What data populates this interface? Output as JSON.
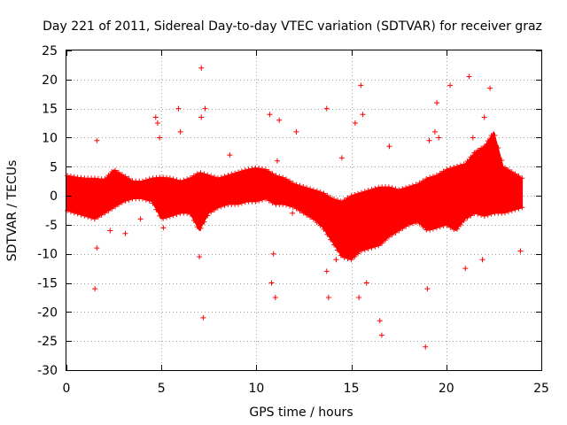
{
  "chart_data": {
    "type": "scatter",
    "title": "Day 221 of 2011, Sidereal Day-to-day VTEC variation (SDTVAR) for receiver graz",
    "xlabel": "GPS time / hours",
    "ylabel": "SDTVAR / TECUs",
    "xlim": [
      0,
      25
    ],
    "ylim": [
      -30,
      25
    ],
    "xticks": [
      0,
      5,
      10,
      15,
      20,
      25
    ],
    "yticks": [
      25,
      20,
      15,
      10,
      5,
      0,
      -5,
      -10,
      -15,
      -20,
      -25,
      -30
    ],
    "grid": true,
    "marker": "+",
    "colors": {
      "series": "#ff0000",
      "axes": "#000000",
      "grid": "#a0a0a0"
    },
    "band": {
      "name": "dense band",
      "x": [
        0.0,
        0.5,
        1.0,
        1.5,
        2.0,
        2.5,
        3.0,
        3.5,
        4.0,
        4.5,
        5.0,
        5.5,
        6.0,
        6.5,
        7.0,
        7.5,
        8.0,
        8.5,
        9.0,
        9.5,
        10.0,
        10.5,
        11.0,
        11.5,
        12.0,
        12.5,
        13.0,
        13.5,
        14.0,
        14.5,
        15.0,
        15.5,
        16.0,
        16.5,
        17.0,
        17.5,
        18.0,
        18.5,
        19.0,
        19.5,
        20.0,
        20.5,
        21.0,
        21.5,
        22.0,
        22.5,
        23.0,
        23.5,
        24.0
      ],
      "upper": [
        3.5,
        3.2,
        3.0,
        3.0,
        2.8,
        4.5,
        3.5,
        2.5,
        2.5,
        3.0,
        3.2,
        3.0,
        2.5,
        3.0,
        4.0,
        3.5,
        3.0,
        3.5,
        4.0,
        4.5,
        4.8,
        4.5,
        3.5,
        3.0,
        2.0,
        1.5,
        1.0,
        0.5,
        -0.5,
        -1.0,
        0.0,
        0.5,
        1.0,
        1.5,
        1.5,
        1.0,
        1.5,
        2.0,
        3.0,
        3.5,
        4.5,
        5.0,
        5.5,
        7.5,
        8.5,
        11.0,
        5.0,
        4.0,
        3.0
      ],
      "lower": [
        -2.5,
        -3.0,
        -3.5,
        -4.0,
        -3.0,
        -2.0,
        -1.0,
        -0.5,
        -0.5,
        -1.0,
        -4.0,
        -3.5,
        -3.0,
        -3.0,
        -6.0,
        -3.0,
        -2.0,
        -1.5,
        -1.5,
        -1.0,
        -1.0,
        -0.5,
        -1.5,
        -1.5,
        -2.0,
        -3.0,
        -4.0,
        -5.5,
        -8.0,
        -10.5,
        -11.0,
        -9.5,
        -9.0,
        -8.5,
        -7.0,
        -6.0,
        -5.0,
        -4.5,
        -6.0,
        -5.5,
        -5.0,
        -6.0,
        -4.0,
        -3.0,
        -3.5,
        -3.0,
        -3.0,
        -2.5,
        -2.0
      ]
    },
    "outliers": {
      "x": [
        1.6,
        1.5,
        1.6,
        2.3,
        3.1,
        3.9,
        4.7,
        4.8,
        4.9,
        5.1,
        5.9,
        6.0,
        7.1,
        7.1,
        7.2,
        7.3,
        7.0,
        8.6,
        10.7,
        11.0,
        11.2,
        10.8,
        10.9,
        11.1,
        12.1,
        11.9,
        13.7,
        13.8,
        13.7,
        14.5,
        15.2,
        15.5,
        15.6,
        15.4,
        15.3,
        16.5,
        16.6,
        17.0,
        18.9,
        19.0,
        19.1,
        19.5,
        19.6,
        19.4,
        20.2,
        20.3,
        21.0,
        21.2,
        21.4,
        22.0,
        21.9,
        22.3,
        22.1,
        23.9,
        15.8,
        14.2
      ],
      "y": [
        9.5,
        -16.0,
        -9.0,
        -6.0,
        -6.5,
        -4.0,
        13.5,
        12.5,
        10.0,
        -5.5,
        15.0,
        11.0,
        22.0,
        13.5,
        -21.0,
        15.0,
        -10.5,
        7.0,
        14.0,
        -17.5,
        13.0,
        -15.0,
        -10.0,
        6.0,
        11.0,
        -3.0,
        15.0,
        -17.5,
        -13.0,
        6.5,
        12.5,
        19.0,
        14.0,
        -17.5,
        -9.0,
        -21.5,
        -24.0,
        8.5,
        -26.0,
        -16.0,
        9.5,
        16.0,
        10.0,
        11.0,
        19.0,
        2.0,
        -12.5,
        20.5,
        10.0,
        13.5,
        -11.0,
        18.5,
        6.0,
        -9.5,
        -15.0,
        -11.0
      ]
    }
  }
}
